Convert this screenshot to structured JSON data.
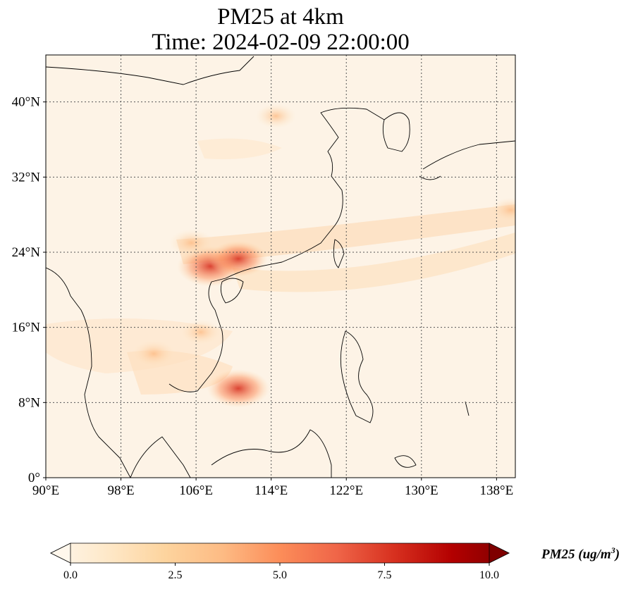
{
  "title": {
    "line1": "PM25 at 4km",
    "line2": "Time: 2024-02-09 22:00:00"
  },
  "map": {
    "extent": {
      "lon": [
        90,
        140
      ],
      "lat": [
        0,
        45
      ]
    },
    "x_ticks": [
      {
        "value": 90,
        "label": "90°E"
      },
      {
        "value": 98,
        "label": "98°E"
      },
      {
        "value": 106,
        "label": "106°E"
      },
      {
        "value": 114,
        "label": "114°E"
      },
      {
        "value": 122,
        "label": "122°E"
      },
      {
        "value": 130,
        "label": "130°E"
      },
      {
        "value": 138,
        "label": "138°E"
      }
    ],
    "y_ticks": [
      {
        "value": 0,
        "label": "0°"
      },
      {
        "value": 8,
        "label": "8°N"
      },
      {
        "value": 16,
        "label": "16°N"
      },
      {
        "value": 24,
        "label": "24°N"
      },
      {
        "value": 32,
        "label": "32°N"
      },
      {
        "value": 40,
        "label": "40°N"
      }
    ],
    "gridlines": true,
    "colormap": "OrRd",
    "background_color": "#fdf3e6",
    "hotspots": [
      {
        "lon": 107.5,
        "lat": 22.5,
        "value": 6.5
      },
      {
        "lon": 110.5,
        "lat": 23.3,
        "value": 5.5
      },
      {
        "lon": 105.5,
        "lat": 25.0,
        "value": 3.5
      },
      {
        "lon": 101.5,
        "lat": 13.2,
        "value": 3.5
      },
      {
        "lon": 110.5,
        "lat": 9.5,
        "value": 6.0
      },
      {
        "lon": 114.5,
        "lat": 38.5,
        "value": 3.0
      },
      {
        "lon": 106.5,
        "lat": 15.5,
        "value": 3.0
      },
      {
        "lon": 139.5,
        "lat": 28.5,
        "value": 3.0
      }
    ]
  },
  "colorbar": {
    "min": 0.0,
    "max": 10.0,
    "ticks": [
      "0.0",
      "2.5",
      "5.0",
      "7.5",
      "10.0"
    ],
    "label_prefix": "PM25 (ug/m",
    "label_sup": "3",
    "label_suffix": ")",
    "colors": [
      "#fff7ec",
      "#fee8c8",
      "#fdd49e",
      "#fdbb84",
      "#fc8d59",
      "#ef6548",
      "#d7301f",
      "#b30000",
      "#7f0000"
    ]
  }
}
